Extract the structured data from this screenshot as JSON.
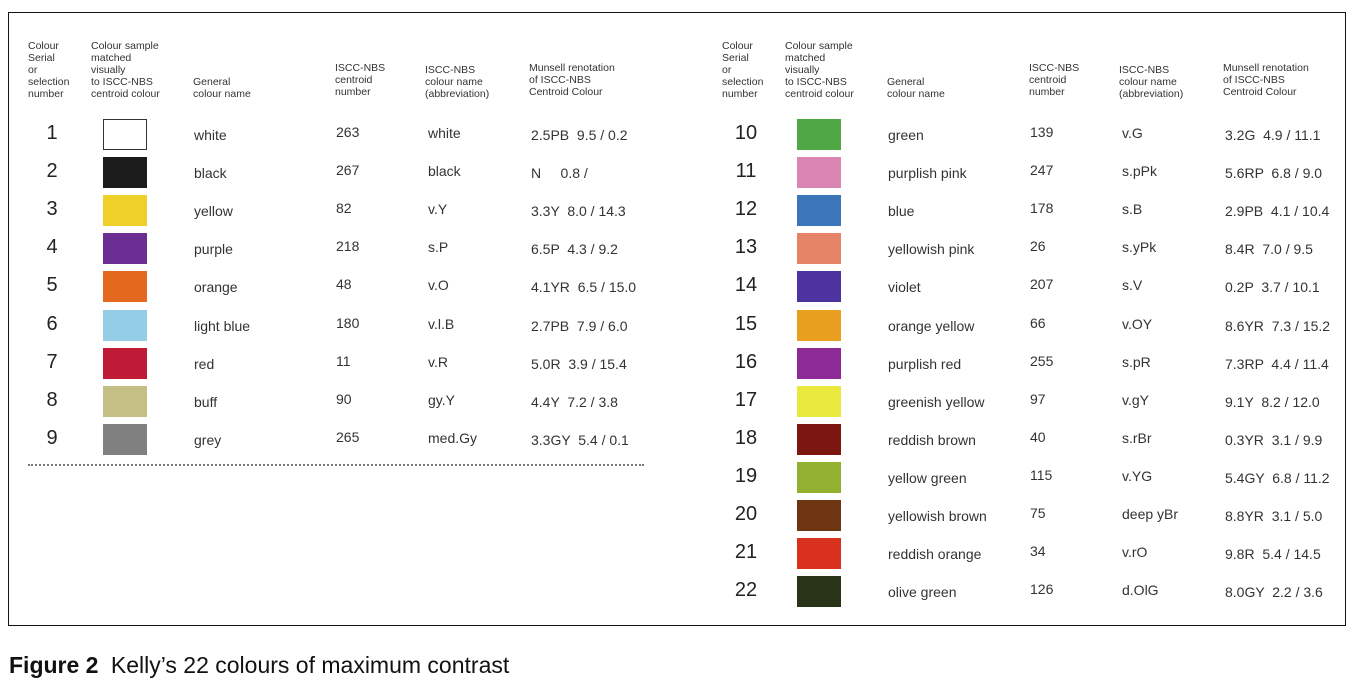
{
  "headers": {
    "serial": "Colour\nSerial\nor\nselection\nnumber",
    "sample": "Colour sample\nmatched\nvisually\nto ISCC-NBS\ncentroid colour",
    "general": "General\ncolour name",
    "centroid": "ISCC-NBS\ncentroid\nnumber",
    "abbrev": "ISCC-NBS\ncolour name\n(abbreviation)",
    "munsell": "Munsell renotation\nof ISCC-NBS\nCentroid Colour"
  },
  "left_rows": [
    {
      "serial": "1",
      "swatch": "#ffffff",
      "name": "white",
      "centroid": "263",
      "abbrev": "white",
      "munsell": "2.5PB  9.5 / 0.2"
    },
    {
      "serial": "2",
      "swatch": "#1b1b1b",
      "name": "black",
      "centroid": "267",
      "abbrev": "black",
      "munsell": "N     0.8 /"
    },
    {
      "serial": "3",
      "swatch": "#efcf2a",
      "name": "yellow",
      "centroid": "82",
      "abbrev": "v.Y",
      "munsell": "3.3Y  8.0 / 14.3"
    },
    {
      "serial": "4",
      "swatch": "#6b2f93",
      "name": "purple",
      "centroid": "218",
      "abbrev": "s.P",
      "munsell": "6.5P  4.3 / 9.2"
    },
    {
      "serial": "5",
      "swatch": "#e5681f",
      "name": "orange",
      "centroid": "48",
      "abbrev": "v.O",
      "munsell": "4.1YR  6.5 / 15.0"
    },
    {
      "serial": "6",
      "swatch": "#94cde6",
      "name": "light blue",
      "centroid": "180",
      "abbrev": "v.l.B",
      "munsell": "2.7PB  7.9 / 6.0"
    },
    {
      "serial": "7",
      "swatch": "#c01b36",
      "name": "red",
      "centroid": "11",
      "abbrev": "v.R",
      "munsell": "5.0R  3.9 / 15.4"
    },
    {
      "serial": "8",
      "swatch": "#c4bf84",
      "name": "buff",
      "centroid": "90",
      "abbrev": "gy.Y",
      "munsell": "4.4Y  7.2 / 3.8"
    },
    {
      "serial": "9",
      "swatch": "#808080",
      "name": "grey",
      "centroid": "265",
      "abbrev": "med.Gy",
      "munsell": "3.3GY  5.4 / 0.1"
    }
  ],
  "right_rows": [
    {
      "serial": "10",
      "swatch": "#4fa746",
      "name": "green",
      "centroid": "139",
      "abbrev": "v.G",
      "munsell": "3.2G  4.9 / 11.1"
    },
    {
      "serial": "11",
      "swatch": "#da85b4",
      "name": "purplish pink",
      "centroid": "247",
      "abbrev": "s.pPk",
      "munsell": "5.6RP  6.8 / 9.0"
    },
    {
      "serial": "12",
      "swatch": "#3b76bb",
      "name": "blue",
      "centroid": "178",
      "abbrev": "s.B",
      "munsell": "2.9PB  4.1 / 10.4"
    },
    {
      "serial": "13",
      "swatch": "#e58467",
      "name": "yellowish pink",
      "centroid": "26",
      "abbrev": "s.yPk",
      "munsell": "8.4R  7.0 / 9.5"
    },
    {
      "serial": "14",
      "swatch": "#4c33a0",
      "name": "violet",
      "centroid": "207",
      "abbrev": "s.V",
      "munsell": "0.2P  3.7 / 10.1"
    },
    {
      "serial": "15",
      "swatch": "#e89f20",
      "name": "orange yellow",
      "centroid": "66",
      "abbrev": "v.OY",
      "munsell": "8.6YR  7.3 / 15.2"
    },
    {
      "serial": "16",
      "swatch": "#8d2a96",
      "name": "purplish red",
      "centroid": "255",
      "abbrev": "s.pR",
      "munsell": "7.3RP  4.4 / 11.4"
    },
    {
      "serial": "17",
      "swatch": "#e9e93d",
      "name": "greenish yellow",
      "centroid": "97",
      "abbrev": "v.gY",
      "munsell": "9.1Y  8.2 / 12.0"
    },
    {
      "serial": "18",
      "swatch": "#7c1611",
      "name": "reddish brown",
      "centroid": "40",
      "abbrev": "s.rBr",
      "munsell": "0.3YR  3.1 / 9.9"
    },
    {
      "serial": "19",
      "swatch": "#92b131",
      "name": "yellow green",
      "centroid": "115",
      "abbrev": "v.YG",
      "munsell": "5.4GY  6.8 / 11.2"
    },
    {
      "serial": "20",
      "swatch": "#6e3512",
      "name": "yellowish brown",
      "centroid": "75",
      "abbrev": "deep yBr",
      "munsell": "8.8YR  3.1 / 5.0"
    },
    {
      "serial": "21",
      "swatch": "#d8321f",
      "name": "reddish orange",
      "centroid": "34",
      "abbrev": "v.rO",
      "munsell": "9.8R  5.4 / 14.5"
    },
    {
      "serial": "22",
      "swatch": "#283317",
      "name": "olive green",
      "centroid": "126",
      "abbrev": "d.OlG",
      "munsell": "8.0GY  2.2 / 3.6"
    }
  ],
  "caption": {
    "figure_label": "Figure 2",
    "title": "Kelly’s 22 colours of maximum contrast"
  }
}
